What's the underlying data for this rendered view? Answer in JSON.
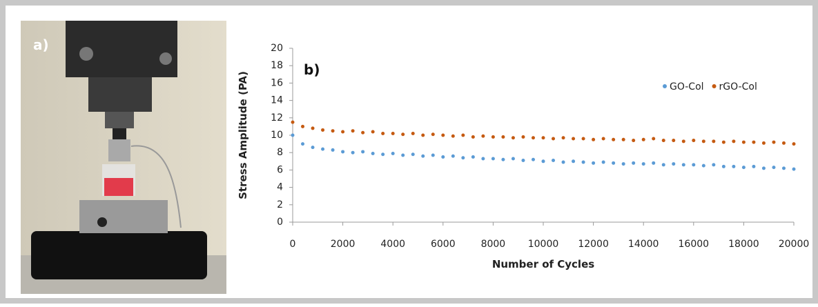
{
  "panel_a": {
    "label": "a)"
  },
  "chart_data": {
    "type": "scatter",
    "annotation": "b)",
    "xlabel": "Number of Cycles",
    "ylabel": "Stress Amplitude (PA)",
    "x": [
      0,
      400,
      800,
      1200,
      1600,
      2000,
      2400,
      2800,
      3200,
      3600,
      4000,
      4400,
      4800,
      5200,
      5600,
      6000,
      6400,
      6800,
      7200,
      7600,
      8000,
      8400,
      8800,
      9200,
      9600,
      10000,
      10400,
      10800,
      11200,
      11600,
      12000,
      12400,
      12800,
      13200,
      13600,
      14000,
      14400,
      14800,
      15200,
      15600,
      16000,
      16400,
      16800,
      17200,
      17600,
      18000,
      18400,
      18800,
      19200,
      19600,
      20000
    ],
    "series": [
      {
        "name": "GO-Col",
        "color": "#5b9bd5",
        "values": [
          10.0,
          9.0,
          8.6,
          8.4,
          8.3,
          8.1,
          8.0,
          8.1,
          7.9,
          7.8,
          7.9,
          7.7,
          7.8,
          7.6,
          7.7,
          7.5,
          7.6,
          7.4,
          7.5,
          7.3,
          7.3,
          7.2,
          7.3,
          7.1,
          7.2,
          7.0,
          7.1,
          6.9,
          7.0,
          6.9,
          6.8,
          6.9,
          6.8,
          6.7,
          6.8,
          6.7,
          6.8,
          6.6,
          6.7,
          6.6,
          6.6,
          6.5,
          6.6,
          6.4,
          6.4,
          6.3,
          6.4,
          6.2,
          6.3,
          6.2,
          6.1
        ]
      },
      {
        "name": "rGO-Col",
        "color": "#c55a11",
        "values": [
          11.5,
          11.0,
          10.8,
          10.6,
          10.5,
          10.4,
          10.5,
          10.3,
          10.4,
          10.2,
          10.2,
          10.1,
          10.2,
          10.0,
          10.1,
          10.0,
          9.9,
          10.0,
          9.8,
          9.9,
          9.8,
          9.8,
          9.7,
          9.8,
          9.7,
          9.7,
          9.6,
          9.7,
          9.6,
          9.6,
          9.5,
          9.6,
          9.5,
          9.5,
          9.4,
          9.5,
          9.6,
          9.4,
          9.4,
          9.3,
          9.4,
          9.3,
          9.3,
          9.2,
          9.3,
          9.2,
          9.2,
          9.1,
          9.2,
          9.1,
          9.0
        ]
      }
    ],
    "xlim": [
      0,
      20000
    ],
    "xticks": [
      0,
      2000,
      4000,
      6000,
      8000,
      10000,
      12000,
      14000,
      16000,
      18000,
      20000
    ],
    "ylim": [
      0,
      20
    ],
    "yticks": [
      0,
      2,
      4,
      6,
      8,
      10,
      12,
      14,
      16,
      18,
      20
    ],
    "legend": "upper right"
  }
}
